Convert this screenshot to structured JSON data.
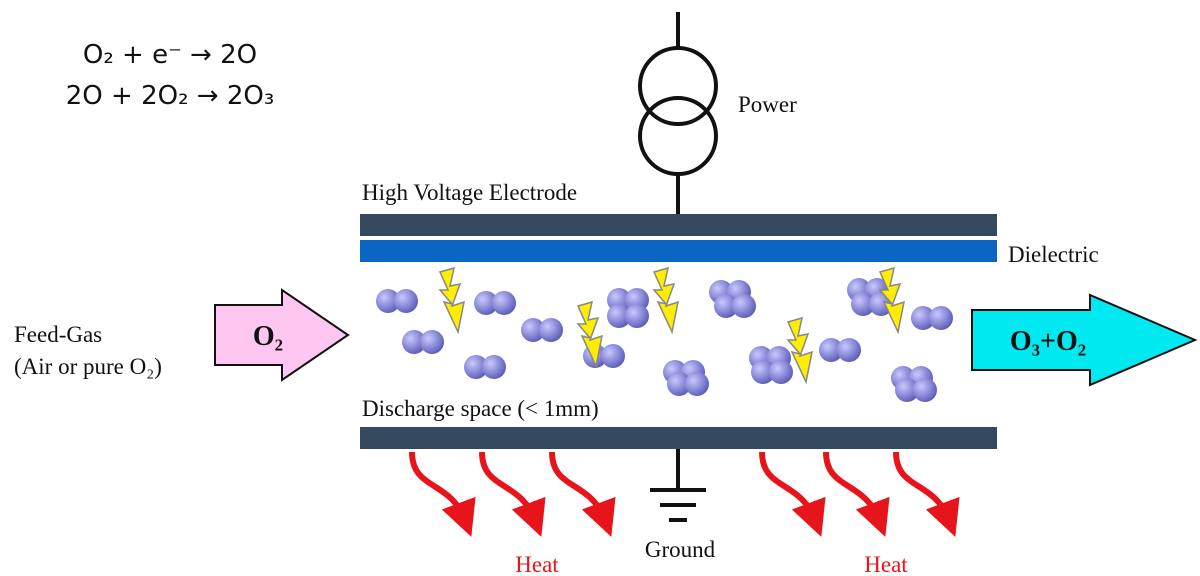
{
  "equations": [
    "O₂ + e⁻ → 2O",
    "2O + 2O₂ → 2O₃"
  ],
  "feed_gas": {
    "label": "Feed-Gas",
    "detail": "(Air or pure O₂)"
  },
  "inlet_arrow": "O₂",
  "outlet_arrow": "O₃+O₂",
  "power": "Power",
  "high_voltage_electrode": "High Voltage Electrode",
  "dielectric": "Dielectric",
  "discharge_space": "Discharge space (< 1mm)",
  "ground": "Ground",
  "heat": [
    "Heat",
    "Heat"
  ]
}
